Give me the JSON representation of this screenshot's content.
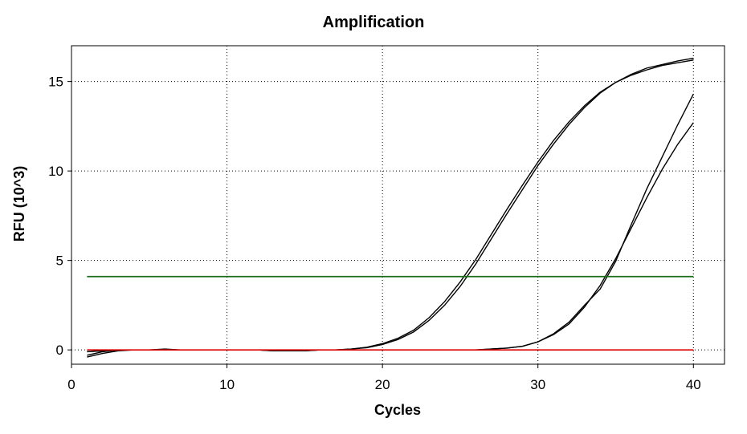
{
  "chart_data": {
    "type": "line",
    "title": "Amplification",
    "xlabel": "Cycles",
    "ylabel": "RFU (10^3)",
    "xlim": [
      0,
      42
    ],
    "ylim": [
      -0.8,
      17
    ],
    "xticks": [
      0,
      10,
      20,
      30,
      40
    ],
    "yticks": [
      0,
      5,
      10,
      15
    ],
    "grid": true,
    "threshold": {
      "value": 4.1,
      "x": [
        1,
        40
      ],
      "color": "#1a6e1a"
    },
    "baseline": {
      "value": 0.0,
      "x": [
        1,
        40
      ],
      "color": "#e00000"
    },
    "series": [
      {
        "color": "#000000",
        "x": [
          1,
          2,
          3,
          4,
          5,
          6,
          7,
          8,
          9,
          10,
          11,
          12,
          13,
          14,
          15,
          16,
          17,
          18,
          19,
          20,
          21,
          22,
          23,
          24,
          25,
          26,
          27,
          28,
          29,
          30,
          31,
          32,
          33,
          34,
          35,
          36,
          37,
          38,
          39,
          40
        ],
        "values": [
          -0.3,
          -0.1,
          0.0,
          0.0,
          0.0,
          0.05,
          0.0,
          0.0,
          0.0,
          0.0,
          0.0,
          0.0,
          -0.05,
          -0.05,
          -0.05,
          0.0,
          0.0,
          0.05,
          0.15,
          0.35,
          0.65,
          1.1,
          1.8,
          2.7,
          3.8,
          5.05,
          6.45,
          7.85,
          9.2,
          10.5,
          11.7,
          12.75,
          13.65,
          14.4,
          14.95,
          15.35,
          15.65,
          15.9,
          16.05,
          16.2
        ]
      },
      {
        "color": "#000000",
        "x": [
          1,
          2,
          3,
          4,
          5,
          6,
          7,
          8,
          9,
          10,
          11,
          12,
          13,
          14,
          15,
          16,
          17,
          18,
          19,
          20,
          21,
          22,
          23,
          24,
          25,
          26,
          27,
          28,
          29,
          30,
          31,
          32,
          33,
          34,
          35,
          36,
          37,
          38,
          39,
          40
        ],
        "values": [
          -0.4,
          -0.2,
          -0.05,
          0.0,
          0.0,
          0.0,
          0.0,
          0.0,
          0.0,
          0.0,
          0.0,
          0.0,
          -0.05,
          -0.05,
          -0.05,
          0.0,
          0.0,
          0.05,
          0.12,
          0.3,
          0.58,
          1.0,
          1.65,
          2.5,
          3.55,
          4.8,
          6.2,
          7.6,
          8.95,
          10.3,
          11.5,
          12.6,
          13.55,
          14.35,
          14.95,
          15.4,
          15.75,
          15.95,
          16.15,
          16.3
        ]
      },
      {
        "color": "#000000",
        "x": [
          1,
          2,
          3,
          4,
          5,
          6,
          7,
          8,
          9,
          10,
          11,
          12,
          13,
          14,
          15,
          16,
          17,
          18,
          19,
          20,
          21,
          22,
          23,
          24,
          25,
          26,
          27,
          28,
          29,
          30,
          31,
          32,
          33,
          34,
          35,
          36,
          37,
          38,
          39,
          40
        ],
        "values": [
          -0.1,
          -0.05,
          0.0,
          0.0,
          0.0,
          0.0,
          0.0,
          0.0,
          0.0,
          0.0,
          0.0,
          0.0,
          0.0,
          0.0,
          0.0,
          0.0,
          0.0,
          0.0,
          0.0,
          0.0,
          0.0,
          0.0,
          0.0,
          0.0,
          0.0,
          0.0,
          0.05,
          0.1,
          0.2,
          0.45,
          0.85,
          1.45,
          2.4,
          3.6,
          5.1,
          6.8,
          8.5,
          10.1,
          11.5,
          12.7
        ]
      },
      {
        "color": "#000000",
        "x": [
          1,
          2,
          3,
          4,
          5,
          6,
          7,
          8,
          9,
          10,
          11,
          12,
          13,
          14,
          15,
          16,
          17,
          18,
          19,
          20,
          21,
          22,
          23,
          24,
          25,
          26,
          27,
          28,
          29,
          30,
          31,
          32,
          33,
          34,
          35,
          36,
          37,
          38,
          39,
          40
        ],
        "values": [
          -0.1,
          -0.05,
          0.0,
          0.0,
          0.0,
          0.0,
          0.0,
          0.0,
          0.0,
          0.0,
          0.0,
          0.0,
          0.0,
          0.0,
          0.0,
          0.0,
          0.0,
          0.0,
          0.0,
          0.0,
          0.0,
          0.0,
          0.0,
          0.0,
          0.0,
          0.0,
          0.05,
          0.1,
          0.2,
          0.45,
          0.9,
          1.55,
          2.5,
          3.4,
          4.95,
          7.0,
          9.0,
          10.8,
          12.6,
          14.3
        ]
      }
    ]
  }
}
